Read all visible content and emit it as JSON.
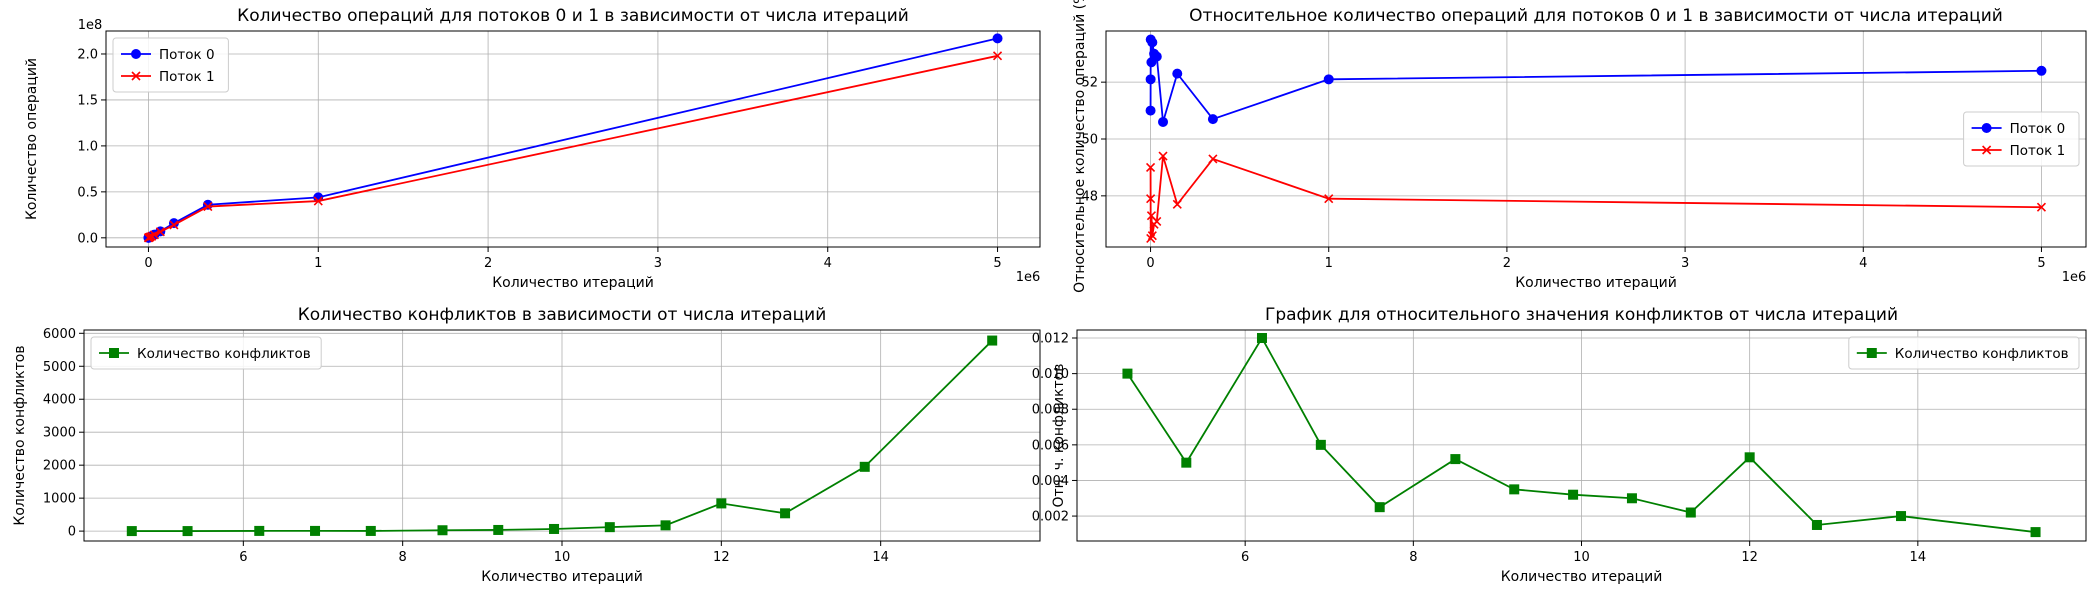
{
  "chart_data": [
    {
      "type": "line",
      "title": "Количество операций для потоков 0 и 1 в зависимости от числа итераций",
      "xlabel": "Количество итераций",
      "ylabel": "Количество операций",
      "x_offset_text": "1e6",
      "y_offset_text": "1e8",
      "xlim": [
        -0.25,
        5.25
      ],
      "ylim": [
        -0.1,
        2.25
      ],
      "xticks": [
        0,
        1,
        2,
        3,
        4,
        5
      ],
      "xtick_labels": [
        "0",
        "1",
        "2",
        "3",
        "4",
        "5"
      ],
      "yticks": [
        0,
        0.5,
        1.0,
        1.5,
        2.0
      ],
      "ytick_labels": [
        "0.0",
        "0.5",
        "1.0",
        "1.5",
        "2.0"
      ],
      "grid": true,
      "legend_position": "upper-left",
      "x": [
        0.0001,
        0.0005,
        0.001,
        0.005,
        0.01,
        0.02,
        0.035,
        0.07,
        0.15,
        0.35,
        1.0,
        5.0
      ],
      "series": [
        {
          "name": "Поток 0",
          "color": "#0000ff",
          "marker": "circle",
          "values": [
            0.0005,
            0.001,
            0.002,
            0.005,
            0.01,
            0.02,
            0.035,
            0.07,
            0.16,
            0.36,
            0.44,
            2.17
          ]
        },
        {
          "name": "Поток 1",
          "color": "#ff0000",
          "marker": "x",
          "values": [
            0.0004,
            0.0009,
            0.0018,
            0.0045,
            0.009,
            0.018,
            0.032,
            0.065,
            0.14,
            0.34,
            0.4,
            1.98
          ]
        }
      ]
    },
    {
      "type": "line",
      "title": "Относительное количество операций для потоков 0 и 1 в зависимости от числа итераций",
      "xlabel": "Количество итераций",
      "ylabel": "Относительное количество операций (%)",
      "x_offset_text": "1e6",
      "xlim": [
        -0.25,
        5.25
      ],
      "ylim": [
        46.2,
        53.8
      ],
      "xticks": [
        0,
        1,
        2,
        3,
        4,
        5
      ],
      "xtick_labels": [
        "0",
        "1",
        "2",
        "3",
        "4",
        "5"
      ],
      "yticks": [
        48,
        50,
        52
      ],
      "ytick_labels": [
        "48",
        "50",
        "52"
      ],
      "grid": true,
      "legend_position": "center-right",
      "x": [
        0.0001,
        0.0005,
        0.001,
        0.005,
        0.01,
        0.02,
        0.035,
        0.07,
        0.15,
        0.35,
        1.0,
        5.0
      ],
      "series": [
        {
          "name": "Поток 0",
          "color": "#0000ff",
          "marker": "circle",
          "values": [
            51.0,
            52.1,
            53.5,
            52.7,
            53.4,
            53.0,
            52.9,
            50.6,
            52.3,
            50.7,
            52.1,
            52.4
          ]
        },
        {
          "name": "Поток 1",
          "color": "#ff0000",
          "marker": "x",
          "values": [
            49.0,
            47.9,
            46.5,
            47.3,
            46.6,
            47.0,
            47.1,
            49.4,
            47.7,
            49.3,
            47.9,
            47.6
          ]
        }
      ]
    },
    {
      "type": "line",
      "title": "Количество конфликтов в зависимости от числа итераций",
      "xlabel": "Количество итераций",
      "ylabel": "Количество конфликтов",
      "xlim": [
        4.0,
        16.0
      ],
      "ylim": [
        -300,
        6100
      ],
      "xticks": [
        6,
        8,
        10,
        12,
        14
      ],
      "xtick_labels": [
        "6",
        "8",
        "10",
        "12",
        "14"
      ],
      "yticks": [
        0,
        1000,
        2000,
        3000,
        4000,
        5000,
        6000
      ],
      "ytick_labels": [
        "0",
        "1000",
        "2000",
        "3000",
        "4000",
        "5000",
        "6000"
      ],
      "grid": true,
      "legend_position": "upper-left",
      "x": [
        4.6,
        5.3,
        6.2,
        6.9,
        7.6,
        8.5,
        9.2,
        9.9,
        10.6,
        11.3,
        12.0,
        12.8,
        13.8,
        15.4
      ],
      "series": [
        {
          "name": "Количество конфликтов",
          "color": "#008000",
          "marker": "square",
          "values": [
            1,
            1,
            6,
            6,
            5,
            26,
            35,
            65,
            120,
            175,
            840,
            540,
            1950,
            5780
          ]
        }
      ]
    },
    {
      "type": "line",
      "title": "График для относительного значения конфликтов от числа итераций",
      "xlabel": "Количество итераций",
      "ylabel": "Отн. ч. конфликтов",
      "xlim": [
        4.0,
        16.0
      ],
      "ylim": [
        0.0006,
        0.01245
      ],
      "xticks": [
        6,
        8,
        10,
        12,
        14
      ],
      "xtick_labels": [
        "6",
        "8",
        "10",
        "12",
        "14"
      ],
      "yticks": [
        0.002,
        0.004,
        0.006,
        0.008,
        0.01,
        0.012
      ],
      "ytick_labels": [
        "0.002",
        "0.004",
        "0.006",
        "0.008",
        "0.010",
        "0.012"
      ],
      "grid": true,
      "legend_position": "upper-right",
      "x": [
        4.6,
        5.3,
        6.2,
        6.9,
        7.6,
        8.5,
        9.2,
        9.9,
        10.6,
        11.3,
        12.0,
        12.8,
        13.8,
        15.4
      ],
      "series": [
        {
          "name": "Количество конфликтов",
          "color": "#008000",
          "marker": "square",
          "values": [
            0.01,
            0.005,
            0.012,
            0.006,
            0.0025,
            0.0052,
            0.0035,
            0.0032,
            0.003,
            0.0022,
            0.0053,
            0.0015,
            0.002,
            0.0011
          ]
        }
      ]
    }
  ]
}
